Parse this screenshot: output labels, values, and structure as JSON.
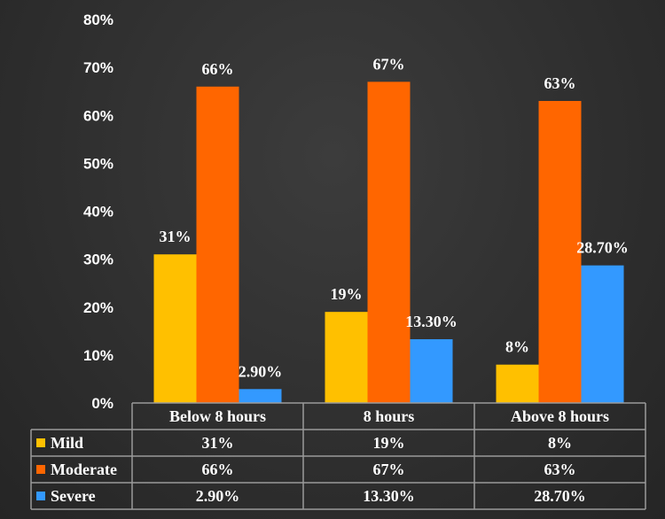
{
  "chart_data": {
    "type": "bar",
    "title": "",
    "xlabel": "",
    "ylabel": "",
    "ylim": [
      0,
      80
    ],
    "yticks": [
      "0%",
      "10%",
      "20%",
      "30%",
      "40%",
      "50%",
      "60%",
      "70%",
      "80%"
    ],
    "grid": false,
    "legend": "data-table-bottom",
    "categories": [
      "Below 8 hours",
      "8 hours",
      "Above 8 hours"
    ],
    "series": [
      {
        "name": "Mild",
        "color": "#FFC000",
        "values": [
          31,
          19,
          8
        ],
        "labels": [
          "31%",
          "19%",
          "8%"
        ]
      },
      {
        "name": "Moderate",
        "color": "#FF6600",
        "values": [
          66,
          67,
          63
        ],
        "labels": [
          "66%",
          "67%",
          "63%"
        ]
      },
      {
        "name": "Severe",
        "color": "#3399FF",
        "values": [
          2.9,
          13.3,
          28.7
        ],
        "labels": [
          "2.90%",
          "13.30%",
          "28.70%"
        ]
      }
    ]
  }
}
